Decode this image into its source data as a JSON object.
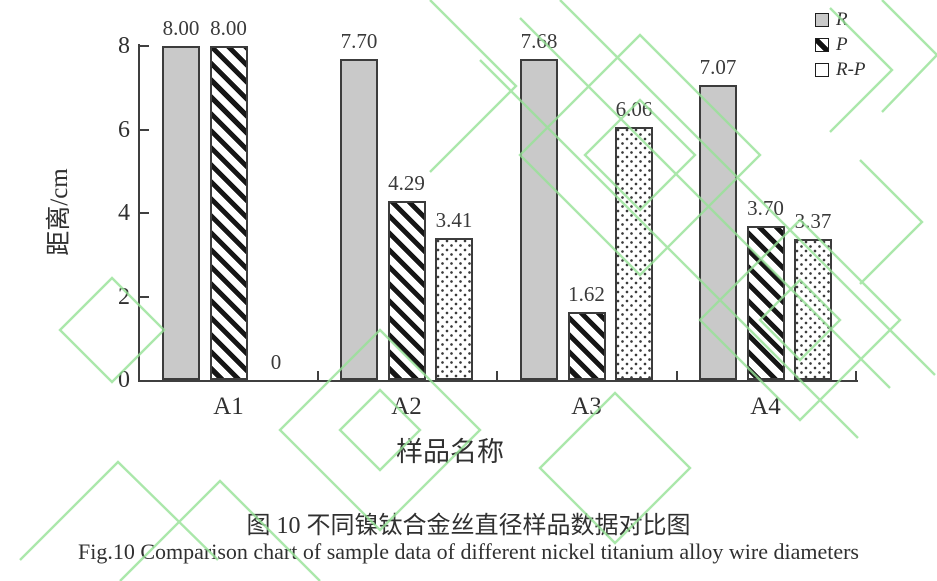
{
  "figure": {
    "caption_cn": "图 10  不同镍钛合金丝直径样品数据对比图",
    "caption_en": "Fig.10 Comparison chart of sample data of different nickel titanium alloy wire diameters"
  },
  "chart_data": {
    "type": "bar",
    "categories": [
      "A1",
      "A2",
      "A3",
      "A4"
    ],
    "series": [
      {
        "name": "R",
        "style": "gray",
        "values": [
          8.0,
          7.7,
          7.68,
          7.07
        ],
        "labels": [
          "8.00",
          "7.70",
          "7.68",
          "7.07"
        ]
      },
      {
        "name": "P",
        "style": "hatch",
        "values": [
          8.0,
          4.29,
          1.62,
          3.7
        ],
        "labels": [
          "8.00",
          "4.29",
          "1.62",
          "3.70"
        ]
      },
      {
        "name": "R-P",
        "style": "dots",
        "values": [
          0,
          3.41,
          6.06,
          3.37
        ],
        "labels": [
          "0",
          "3.41",
          "6.06",
          "3.37"
        ]
      }
    ],
    "xlabel": "样品名称",
    "ylabel": "距离/cm",
    "ylim": [
      0,
      8
    ],
    "yticks": [
      0,
      2,
      4,
      6,
      8
    ],
    "legend_position": "top-right",
    "grid": false
  },
  "colors": {
    "watermark_green": "#96e296",
    "bar_gray": "#c9c9c9",
    "bar_border": "#3c3c3c",
    "axis": "#3f3f3f",
    "text": "#303030"
  }
}
